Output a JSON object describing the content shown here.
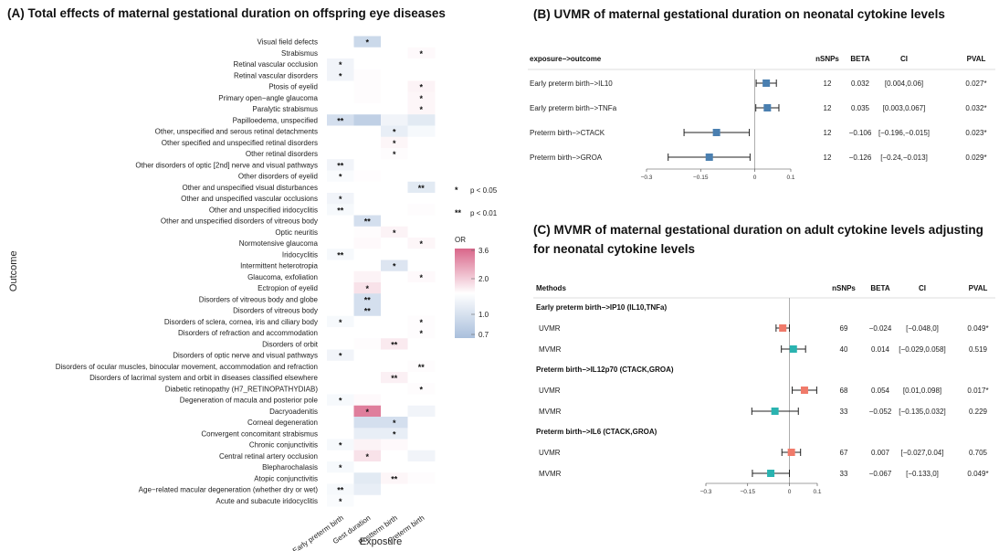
{
  "chart_data": [
    {
      "type": "heatmap",
      "title": "(A) Total effects of maternal gestational duration on offspring eye diseases",
      "xlabel": "Exposure",
      "ylabel": "Outcome",
      "x_categories": [
        "Early preterm birth",
        "Gest duration",
        "Postterm birth",
        "Preterm birth"
      ],
      "rows": [
        {
          "label": "Visual field defects",
          "or": [
            1.0,
            0.82,
            1.0,
            1.0
          ],
          "sig": [
            "",
            "*",
            "",
            ""
          ]
        },
        {
          "label": "Strabismus",
          "or": [
            1.0,
            1.0,
            1.0,
            1.1
          ],
          "sig": [
            "",
            "",
            "",
            "*"
          ]
        },
        {
          "label": "Retinal vascular occlusion",
          "or": [
            0.95,
            1.0,
            1.0,
            1.0
          ],
          "sig": [
            "*",
            "",
            "",
            ""
          ]
        },
        {
          "label": "Retinal vascular disorders",
          "or": [
            0.95,
            1.05,
            1.0,
            1.0
          ],
          "sig": [
            "*",
            "",
            "",
            ""
          ]
        },
        {
          "label": "Ptosis of eyelid",
          "or": [
            1.0,
            1.05,
            1.0,
            1.2
          ],
          "sig": [
            "",
            "",
            "",
            "*"
          ]
        },
        {
          "label": "Primary open−angle glaucoma",
          "or": [
            1.0,
            1.05,
            1.0,
            1.15
          ],
          "sig": [
            "",
            "",
            "",
            "*"
          ]
        },
        {
          "label": "Paralytic strabismus",
          "or": [
            1.0,
            1.0,
            1.0,
            1.15
          ],
          "sig": [
            "",
            "",
            "",
            "*"
          ]
        },
        {
          "label": "Papilloedema, unspecified",
          "or": [
            0.85,
            0.78,
            0.95,
            0.9
          ],
          "sig": [
            "**",
            "",
            "",
            ""
          ]
        },
        {
          "label": "Other, unspecified and serous retinal detachments",
          "or": [
            1.0,
            1.0,
            0.92,
            0.97
          ],
          "sig": [
            "",
            "",
            "*",
            ""
          ]
        },
        {
          "label": "Other specified and unspecified retinal disorders",
          "or": [
            1.0,
            1.0,
            1.15,
            1.0
          ],
          "sig": [
            "",
            "",
            "*",
            ""
          ]
        },
        {
          "label": "Other retinal disorders",
          "or": [
            1.0,
            1.0,
            1.05,
            1.0
          ],
          "sig": [
            "",
            "",
            "*",
            ""
          ]
        },
        {
          "label": "Other disorders of optic [2nd] nerve and visual pathways",
          "or": [
            0.95,
            1.0,
            1.0,
            1.0
          ],
          "sig": [
            "**",
            "",
            "",
            ""
          ]
        },
        {
          "label": "Other disorders of eyelid",
          "or": [
            0.98,
            1.03,
            1.0,
            1.0
          ],
          "sig": [
            "*",
            "",
            "",
            ""
          ]
        },
        {
          "label": "Other and unspecified visual disturbances",
          "or": [
            1.0,
            1.0,
            1.0,
            0.9
          ],
          "sig": [
            "",
            "",
            "",
            "**"
          ]
        },
        {
          "label": "Other and unspecified vascular occlusions",
          "or": [
            0.95,
            1.0,
            1.0,
            1.0
          ],
          "sig": [
            "*",
            "",
            "",
            ""
          ]
        },
        {
          "label": "Other and unspecified iridocyclitis",
          "or": [
            0.97,
            1.0,
            1.0,
            1.05
          ],
          "sig": [
            "**",
            "",
            "",
            ""
          ]
        },
        {
          "label": "Other and unspecified disorders of vitreous body",
          "or": [
            1.0,
            0.85,
            1.0,
            1.0
          ],
          "sig": [
            "",
            "**",
            "",
            ""
          ]
        },
        {
          "label": "Optic neuritis",
          "or": [
            1.0,
            1.05,
            1.2,
            1.0
          ],
          "sig": [
            "",
            "",
            "*",
            ""
          ]
        },
        {
          "label": "Normotensive glaucoma",
          "or": [
            1.0,
            1.1,
            1.0,
            1.15
          ],
          "sig": [
            "",
            "",
            "",
            "*"
          ]
        },
        {
          "label": "Iridocyclitis",
          "or": [
            0.97,
            1.0,
            1.0,
            1.0
          ],
          "sig": [
            "**",
            "",
            "",
            ""
          ]
        },
        {
          "label": "Intermittent heterotropia",
          "or": [
            1.0,
            1.0,
            0.88,
            1.0
          ],
          "sig": [
            "",
            "",
            "*",
            ""
          ]
        },
        {
          "label": "Glaucoma, exfoliation",
          "or": [
            1.0,
            1.2,
            1.0,
            1.1
          ],
          "sig": [
            "",
            "",
            "",
            "*"
          ]
        },
        {
          "label": "Ectropion of eyelid",
          "or": [
            1.0,
            1.5,
            1.0,
            1.0
          ],
          "sig": [
            "",
            "*",
            "",
            ""
          ]
        },
        {
          "label": "Disorders of vitreous body and globe",
          "or": [
            1.0,
            0.85,
            1.0,
            1.0
          ],
          "sig": [
            "",
            "**",
            "",
            ""
          ]
        },
        {
          "label": "Disorders of vitreous body",
          "or": [
            1.0,
            0.85,
            1.0,
            1.0
          ],
          "sig": [
            "",
            "**",
            "",
            ""
          ]
        },
        {
          "label": "Disorders of sclera, cornea, iris and ciliary body",
          "or": [
            0.97,
            1.0,
            1.0,
            1.05
          ],
          "sig": [
            "*",
            "",
            "",
            "*"
          ]
        },
        {
          "label": "Disorders of refraction and accommodation",
          "or": [
            1.0,
            1.0,
            1.0,
            1.05
          ],
          "sig": [
            "",
            "",
            "",
            "*"
          ]
        },
        {
          "label": "Disorders of orbit",
          "or": [
            1.0,
            1.05,
            1.35,
            1.0
          ],
          "sig": [
            "",
            "",
            "**",
            ""
          ]
        },
        {
          "label": "Disorders of optic nerve and visual pathways",
          "or": [
            0.95,
            1.0,
            1.0,
            1.0
          ],
          "sig": [
            "*",
            "",
            "",
            ""
          ]
        },
        {
          "label": "Disorders of ocular muscles, binocular movement, accommodation and refraction",
          "or": [
            1.0,
            1.0,
            1.0,
            1.05
          ],
          "sig": [
            "",
            "",
            "",
            "**"
          ]
        },
        {
          "label": "Disorders of lacrimal system and orbit in diseases classified elsewhere",
          "or": [
            1.0,
            1.0,
            1.25,
            1.0
          ],
          "sig": [
            "",
            "",
            "**",
            ""
          ]
        },
        {
          "label": "Diabetic retinopathy (H7_RETINOPATHYDIAB)",
          "or": [
            1.0,
            1.0,
            1.0,
            1.05
          ],
          "sig": [
            "",
            "",
            "",
            "*"
          ]
        },
        {
          "label": "Degeneration of macula and posterior pole",
          "or": [
            0.97,
            1.1,
            1.0,
            1.0
          ],
          "sig": [
            "*",
            "",
            "",
            ""
          ]
        },
        {
          "label": "Dacryoadenitis",
          "or": [
            1.0,
            3.2,
            1.0,
            0.95
          ],
          "sig": [
            "",
            "*",
            "",
            ""
          ]
        },
        {
          "label": "Corneal degeneration",
          "or": [
            1.0,
            0.85,
            0.85,
            1.0
          ],
          "sig": [
            "",
            "",
            "*",
            ""
          ]
        },
        {
          "label": "Convergent concomitant strabismus",
          "or": [
            1.0,
            0.92,
            0.92,
            1.0
          ],
          "sig": [
            "",
            "",
            "*",
            ""
          ]
        },
        {
          "label": "Chronic conjunctivitis",
          "or": [
            0.97,
            1.2,
            1.1,
            1.0
          ],
          "sig": [
            "*",
            "",
            "",
            ""
          ]
        },
        {
          "label": "Central retinal artery occlusion",
          "or": [
            1.0,
            1.5,
            1.0,
            0.95
          ],
          "sig": [
            "",
            "*",
            "",
            ""
          ]
        },
        {
          "label": "Blepharochalasis",
          "or": [
            0.97,
            1.0,
            1.0,
            1.0
          ],
          "sig": [
            "*",
            "",
            "",
            ""
          ]
        },
        {
          "label": "Atopic conjunctivitis",
          "or": [
            1.0,
            0.9,
            1.15,
            1.05
          ],
          "sig": [
            "",
            "",
            "**",
            ""
          ]
        },
        {
          "label": "Age−related macular degeneration (whether dry or wet)",
          "or": [
            0.97,
            0.92,
            1.0,
            1.0
          ],
          "sig": [
            "**",
            "",
            "",
            ""
          ]
        },
        {
          "label": "Acute and subacute iridocyclitis",
          "or": [
            0.98,
            1.0,
            1.0,
            1.0
          ],
          "sig": [
            "*",
            "",
            "",
            ""
          ]
        }
      ],
      "legend": {
        "title": "OR",
        "ticks": [
          "3.6",
          "2.0",
          "1.0",
          "0.7"
        ],
        "colors": {
          "low": "#a9bfdc",
          "mid": "#ffffff",
          "high": "#d9668a"
        },
        "sig_notes": [
          {
            "symbol": "*",
            "text": "p < 0.05"
          },
          {
            "symbol": "**",
            "text": "p < 0.01"
          }
        ]
      }
    },
    {
      "type": "forest",
      "title": "(B) UVMR of maternal gestational duration on neonatal cytokine levels",
      "headers": {
        "label": "exposure−>outcome",
        "nsnps": "nSNPs",
        "beta": "BETA",
        "ci": "CI",
        "pval": "PVAL"
      },
      "xlim": [
        -0.3,
        0.1
      ],
      "xticks": [
        "−0.3",
        "−0.15",
        "0",
        "0.1"
      ],
      "xtick_values": [
        -0.3,
        -0.15,
        0,
        0.1
      ],
      "color": "#4a7fb0",
      "rows": [
        {
          "label": "Early preterm birth−>IL10",
          "nsnps": "12",
          "beta_text": "0.032",
          "ci_text": "[0.004,0.06]",
          "pval": "0.027*",
          "beta": 0.032,
          "lo": 0.004,
          "hi": 0.06
        },
        {
          "label": "Early preterm birth−>TNFa",
          "nsnps": "12",
          "beta_text": "0.035",
          "ci_text": "[0.003,0.067]",
          "pval": "0.032*",
          "beta": 0.035,
          "lo": 0.003,
          "hi": 0.067
        },
        {
          "label": "Preterm birth−>CTACK",
          "nsnps": "12",
          "beta_text": "−0.106",
          "ci_text": "[−0.196,−0.015]",
          "pval": "0.023*",
          "beta": -0.106,
          "lo": -0.196,
          "hi": -0.015
        },
        {
          "label": "Preterm birth−>GROA",
          "nsnps": "12",
          "beta_text": "−0.126",
          "ci_text": "[−0.24,−0.013]",
          "pval": "0.029*",
          "beta": -0.126,
          "lo": -0.24,
          "hi": -0.013
        }
      ]
    },
    {
      "type": "forest",
      "title": "(C) MVMR of maternal gestational duration on adult cytokine levels adjusting for neonatal cytokine levels",
      "title_lines": [
        "(C) MVMR of maternal gestational duration on adult cytokine levels adjusting",
        "for neonatal cytokine levels"
      ],
      "headers": {
        "label": "Methods",
        "nsnps": "nSNPs",
        "beta": "BETA",
        "ci": "CI",
        "pval": "PVAL"
      },
      "xlim": [
        -0.3,
        0.1
      ],
      "xticks": [
        "−0.3",
        "−0.15",
        "0",
        "0.1"
      ],
      "xtick_values": [
        -0.3,
        -0.15,
        0,
        0.1
      ],
      "colors": {
        "UVMR": "#f07a6a",
        "MVMR": "#2ab3b0"
      },
      "groups": [
        {
          "label": "Early preterm birth−>IP10 (IL10,TNFa)",
          "rows": [
            {
              "method": "UVMR",
              "nsnps": "69",
              "beta_text": "−0.024",
              "ci_text": "[−0.048,0]",
              "pval": "0.049*",
              "beta": -0.024,
              "lo": -0.048,
              "hi": 0.0
            },
            {
              "method": "MVMR",
              "nsnps": "40",
              "beta_text": "0.014",
              "ci_text": "[−0.029,0.058]",
              "pval": "0.519",
              "beta": 0.014,
              "lo": -0.029,
              "hi": 0.058
            }
          ]
        },
        {
          "label": "Preterm birth−>IL12p70 (CTACK,GROA)",
          "rows": [
            {
              "method": "UVMR",
              "nsnps": "68",
              "beta_text": "0.054",
              "ci_text": "[0.01,0.098]",
              "pval": "0.017*",
              "beta": 0.054,
              "lo": 0.01,
              "hi": 0.098
            },
            {
              "method": "MVMR",
              "nsnps": "33",
              "beta_text": "−0.052",
              "ci_text": "[−0.135,0.032]",
              "pval": "0.229",
              "beta": -0.052,
              "lo": -0.135,
              "hi": 0.032
            }
          ]
        },
        {
          "label": "Preterm birth−>IL6 (CTACK,GROA)",
          "rows": [
            {
              "method": "UVMR",
              "nsnps": "67",
              "beta_text": "0.007",
              "ci_text": "[−0.027,0.04]",
              "pval": "0.705",
              "beta": 0.007,
              "lo": -0.027,
              "hi": 0.04
            },
            {
              "method": "MVMR",
              "nsnps": "33",
              "beta_text": "−0.067",
              "ci_text": "[−0.133,0]",
              "pval": "0.049*",
              "beta": -0.067,
              "lo": -0.133,
              "hi": 0.0
            }
          ]
        }
      ]
    }
  ]
}
